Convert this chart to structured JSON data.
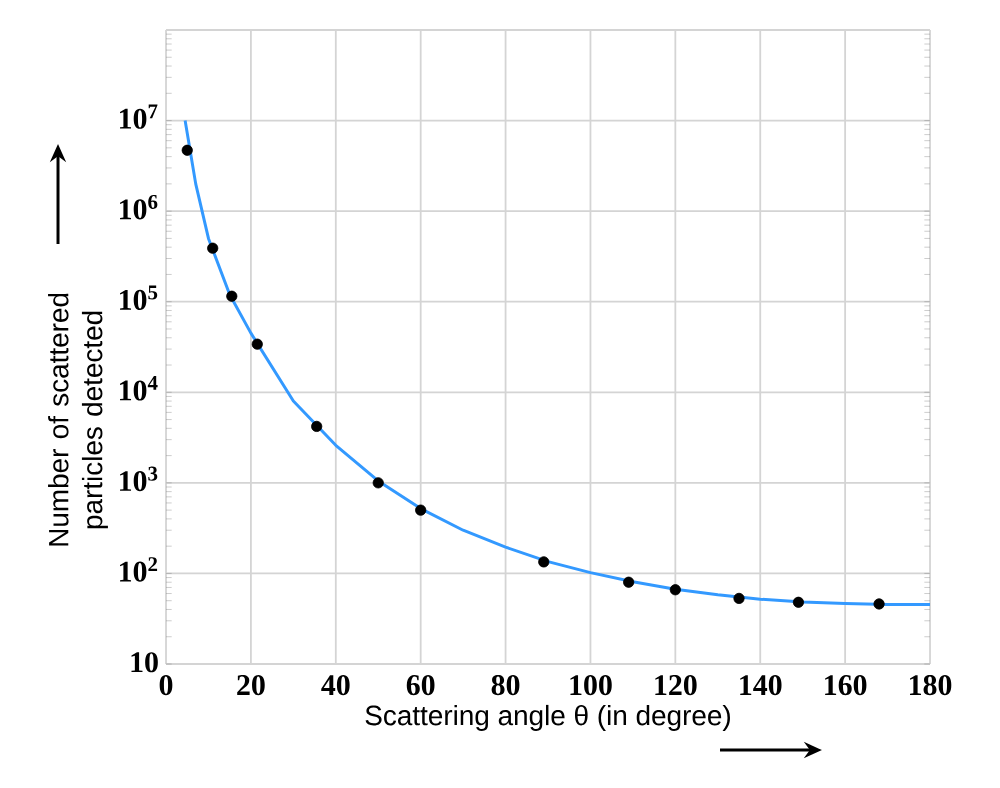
{
  "chart_data": {
    "type": "scatter",
    "xlabel": "Scattering angle θ (in degree)",
    "ylabel": "Number of scattered particles detected",
    "xlim": [
      0,
      180
    ],
    "xticks": [
      0,
      20,
      40,
      60,
      80,
      100,
      120,
      140,
      160,
      180
    ],
    "ylim": [
      10,
      100000000
    ],
    "log": "y",
    "yticks": [
      10,
      {
        "value": 100,
        "label": "10$^{2}$"
      },
      {
        "value": 1000,
        "label": "10$^{3}$"
      },
      {
        "value": 10000,
        "label": "10$^{4}$"
      },
      {
        "value": 100000,
        "label": "10$^{5}$"
      },
      {
        "value": 1000000,
        "label": "10$^{6}$"
      },
      {
        "value": 10000000,
        "label": "10$^{7}$"
      },
      {
        "value": 100000000,
        "label": null
      }
    ],
    "grid": true,
    "series": [
      {
        "type": "line",
        "color": "#3399ff",
        "marker": "none",
        "line_style": "solid",
        "x": [
          4.5,
          7,
          10,
          15,
          20,
          30,
          40,
          50,
          60,
          70,
          80,
          90,
          100,
          110,
          120,
          130,
          140,
          150,
          160,
          170,
          180
        ],
        "values": [
          10000000,
          2000000,
          500000,
          120000,
          45000,
          8000,
          2600,
          1050,
          520,
          300,
          195,
          135,
          102,
          81,
          67,
          58,
          52,
          48.5,
          46.5,
          45.5,
          45.5
        ]
      },
      {
        "type": "scatter",
        "color": "#000000",
        "marker": "circle",
        "x": [
          5,
          11,
          15.5,
          21.5,
          35.5,
          50,
          60,
          89,
          109,
          120,
          135,
          149,
          168
        ],
        "values": [
          4700000,
          390000,
          115000,
          34000,
          4200,
          1000,
          500,
          134,
          80,
          66,
          53,
          48,
          46
        ]
      }
    ]
  }
}
